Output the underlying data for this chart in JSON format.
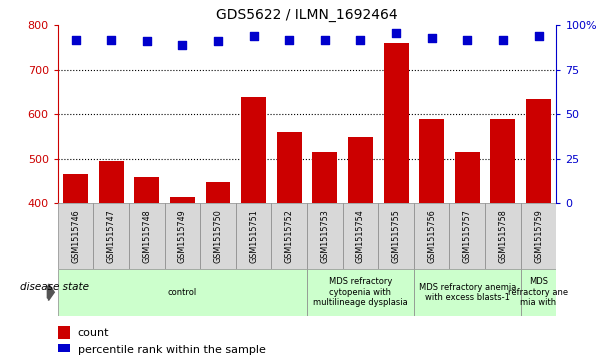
{
  "title": "GDS5622 / ILMN_1692464",
  "samples": [
    "GSM1515746",
    "GSM1515747",
    "GSM1515748",
    "GSM1515749",
    "GSM1515750",
    "GSM1515751",
    "GSM1515752",
    "GSM1515753",
    "GSM1515754",
    "GSM1515755",
    "GSM1515756",
    "GSM1515757",
    "GSM1515758",
    "GSM1515759"
  ],
  "counts": [
    465,
    495,
    460,
    413,
    447,
    640,
    560,
    515,
    550,
    760,
    590,
    515,
    590,
    635
  ],
  "percentile_ranks": [
    92,
    92,
    91,
    89,
    91,
    94,
    92,
    92,
    92,
    96,
    93,
    92,
    92,
    94
  ],
  "ylim_left": [
    400,
    800
  ],
  "ylim_right": [
    0,
    100
  ],
  "yticks_left": [
    400,
    500,
    600,
    700,
    800
  ],
  "yticks_right": [
    0,
    25,
    50,
    75,
    100
  ],
  "bar_color": "#cc0000",
  "dot_color": "#0000cc",
  "grid_color": "#000000",
  "bg_color": "#d8d8d8",
  "plot_bg": "#ffffff",
  "group_boundaries": [
    0,
    7,
    10,
    13,
    14
  ],
  "group_labels": [
    "control",
    "MDS refractory\ncytopenia with\nmultilineage dysplasia",
    "MDS refractory anemia\nwith excess blasts-1",
    "MDS\nrefractory ane\nmia with"
  ],
  "group_color": "#ccffcc",
  "disease_state_label": "disease state",
  "legend_count_label": "count",
  "legend_pct_label": "percentile rank within the sample"
}
